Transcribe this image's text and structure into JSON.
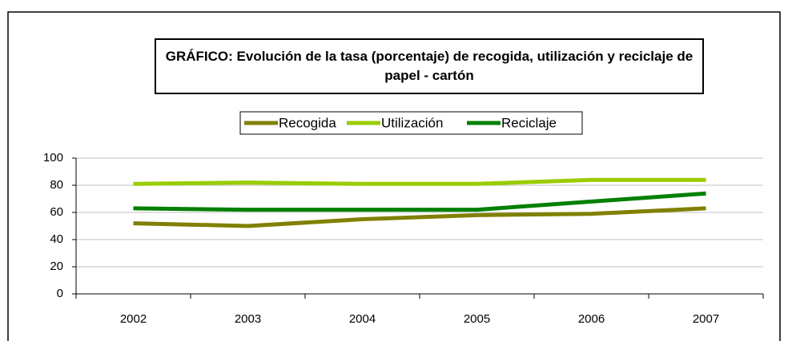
{
  "chart_data": {
    "type": "line",
    "title": "GRÁFICO: Evolución de la tasa (porcentaje) de recogida, utilización y reciclaje de papel - cartón",
    "categories": [
      "2002",
      "2003",
      "2004",
      "2005",
      "2006",
      "2007"
    ],
    "series": [
      {
        "name": "Recogida",
        "color": "#808000",
        "values": [
          52,
          50,
          55,
          58,
          59,
          63
        ]
      },
      {
        "name": "Utilización",
        "color": "#99cc00",
        "values": [
          81,
          82,
          81,
          81,
          84,
          84
        ]
      },
      {
        "name": "Reciclaje",
        "color": "#008000",
        "values": [
          63,
          62,
          62,
          62,
          68,
          74
        ]
      }
    ],
    "ylim": [
      0,
      100
    ],
    "yticks": [
      0,
      20,
      40,
      60,
      80,
      100
    ],
    "grid": true,
    "legend": "top"
  }
}
